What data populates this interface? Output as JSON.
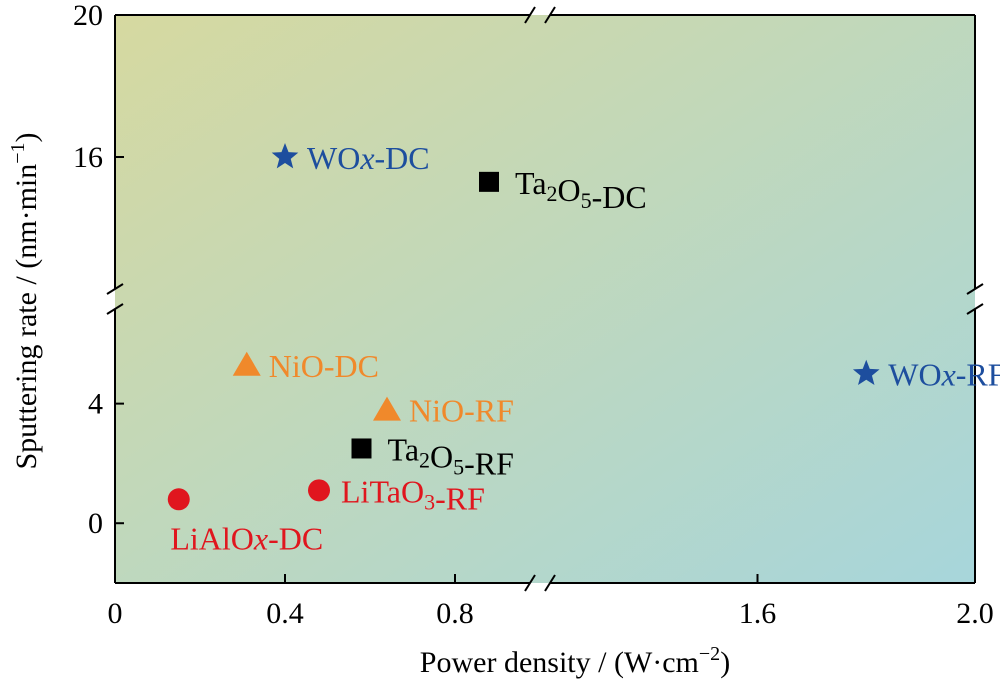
{
  "chart_data": {
    "type": "scatter",
    "xlabel": "Power density / (W·cm",
    "xlabel_sup": "−2",
    "xlabel_end": ")",
    "ylabel": "Sputtering rate / (nm·min",
    "ylabel_sup": "−1",
    "ylabel_end": ")",
    "x_axis": {
      "type": "broken",
      "segments": [
        [
          0,
          1.0
        ],
        [
          1.2,
          2.0
        ]
      ],
      "ticks": [
        {
          "value": 0,
          "label": "0"
        },
        {
          "value": 0.4,
          "label": "0.4"
        },
        {
          "value": 0.8,
          "label": "0.8"
        },
        {
          "value": 1.6,
          "label": "1.6"
        },
        {
          "value": 2.0,
          "label": "2.0"
        }
      ]
    },
    "y_axis": {
      "type": "broken",
      "segments": [
        [
          -2,
          7.5
        ],
        [
          12,
          20
        ]
      ],
      "ticks": [
        {
          "value": 0,
          "label": "0"
        },
        {
          "value": 4,
          "label": "4"
        },
        {
          "value": 16,
          "label": "16"
        },
        {
          "value": 20,
          "label": "20"
        }
      ]
    },
    "background": {
      "from": "#d6d9a0",
      "to": "#a7d6db"
    },
    "points": [
      {
        "name_parts": [
          {
            "t": "WO"
          },
          {
            "t": "x",
            "style": "italic"
          },
          {
            "t": "-DC"
          }
        ],
        "x": 0.4,
        "y": 16.0,
        "marker": "star",
        "color": "#1d4e9e"
      },
      {
        "name_parts": [
          {
            "t": "Ta"
          },
          {
            "t": "2",
            "style": "sub"
          },
          {
            "t": "O"
          },
          {
            "t": "5",
            "style": "sub"
          },
          {
            "t": "-DC"
          }
        ],
        "x": 0.88,
        "y": 15.3,
        "marker": "square",
        "color": "#000000"
      },
      {
        "name_parts": [
          {
            "t": "NiO-DC"
          }
        ],
        "x": 0.31,
        "y": 5.3,
        "marker": "triangle",
        "color": "#f0892b"
      },
      {
        "name_parts": [
          {
            "t": "NiO-RF"
          }
        ],
        "x": 0.64,
        "y": 3.8,
        "marker": "triangle",
        "color": "#f0892b"
      },
      {
        "name_parts": [
          {
            "t": "WO"
          },
          {
            "t": "x",
            "style": "italic"
          },
          {
            "t": "-RF"
          }
        ],
        "x": 1.8,
        "y": 5.0,
        "marker": "star",
        "color": "#1d4e9e"
      },
      {
        "name_parts": [
          {
            "t": "Ta"
          },
          {
            "t": "2",
            "style": "sub"
          },
          {
            "t": "O"
          },
          {
            "t": "5",
            "style": "sub"
          },
          {
            "t": "-RF"
          }
        ],
        "x": 0.58,
        "y": 2.5,
        "marker": "square",
        "color": "#000000"
      },
      {
        "name_parts": [
          {
            "t": "LiTaO"
          },
          {
            "t": "3",
            "style": "sub"
          },
          {
            "t": "-RF"
          }
        ],
        "x": 0.48,
        "y": 1.1,
        "marker": "circle",
        "color": "#e0161e"
      },
      {
        "name_parts": [
          {
            "t": "LiAlO"
          },
          {
            "t": "x",
            "style": "italic"
          },
          {
            "t": "-DC"
          }
        ],
        "x": 0.15,
        "y": 0.8,
        "marker": "circle",
        "color": "#e0161e"
      }
    ]
  }
}
